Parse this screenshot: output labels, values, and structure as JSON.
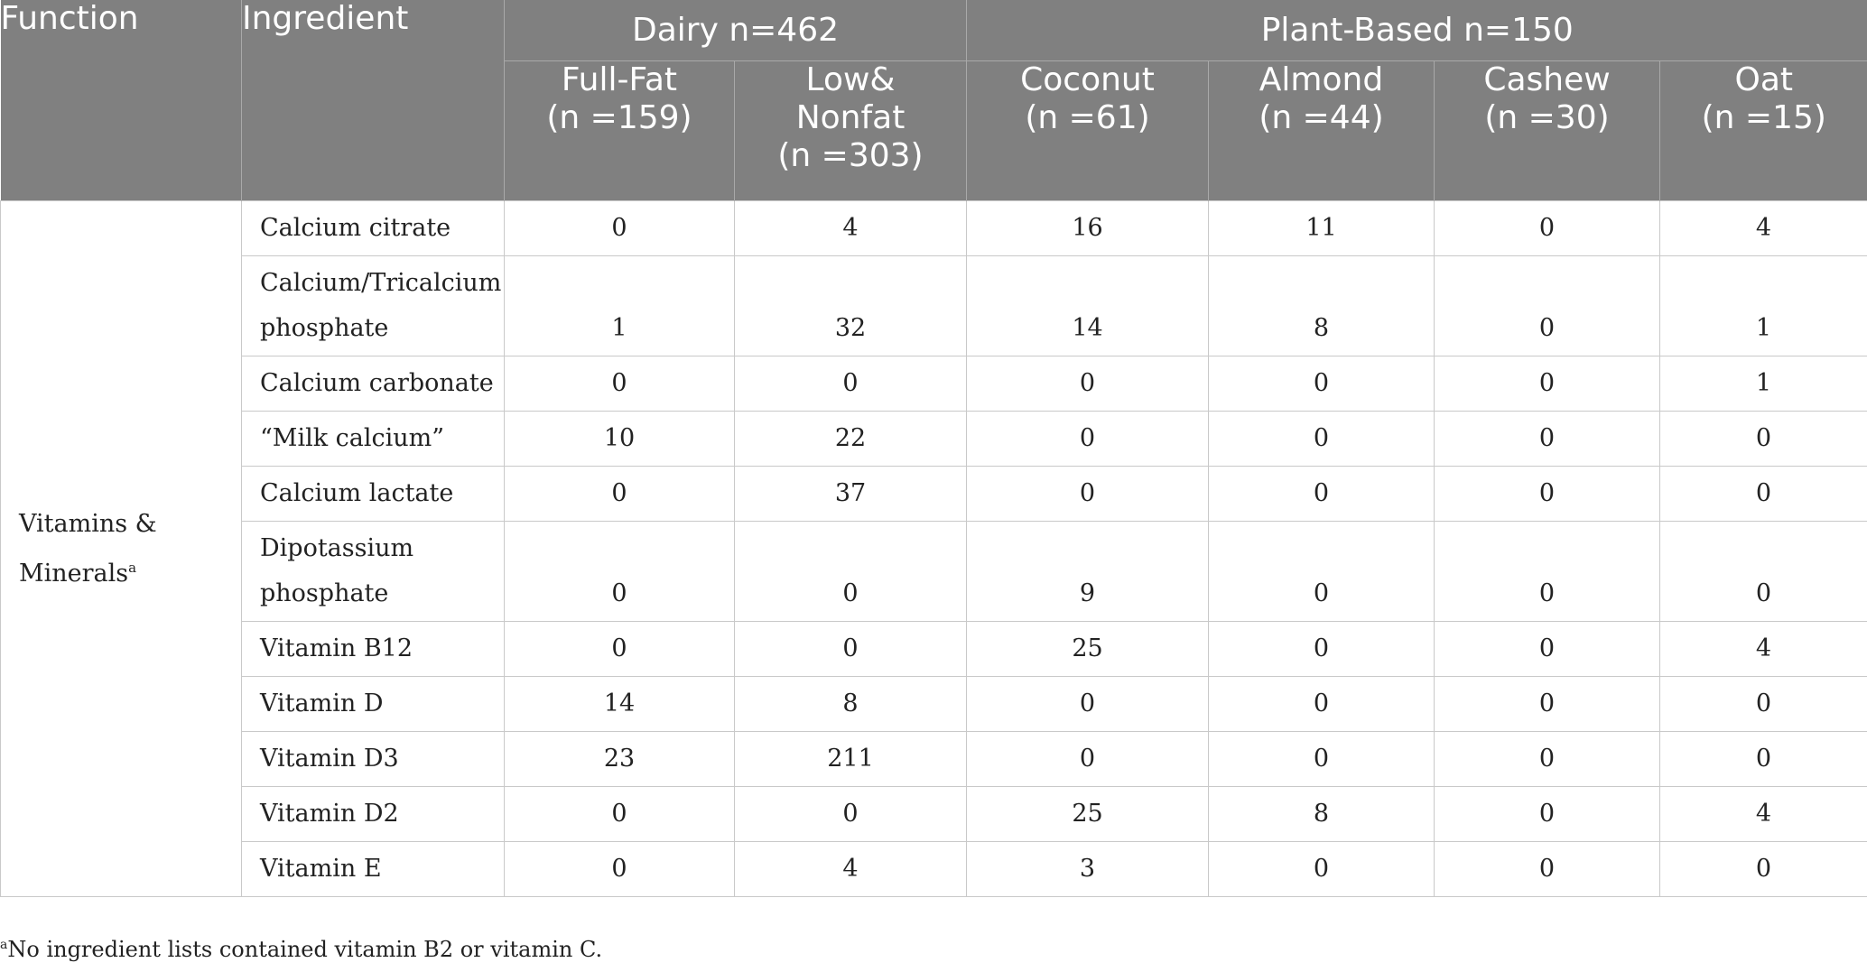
{
  "header": {
    "function": "Function",
    "ingredient": "Ingredient",
    "dairy_group": "Dairy n=462",
    "plant_group": "Plant-Based n=150",
    "columns": [
      {
        "line1": "Full-Fat",
        "line2": "(n =159)",
        "line3": ""
      },
      {
        "line1": "Low&",
        "line2": "Nonfat",
        "line3": "(n =303)"
      },
      {
        "line1": "Coconut",
        "line2": "(n =61)",
        "line3": ""
      },
      {
        "line1": "Almond",
        "line2": "(n =44)",
        "line3": ""
      },
      {
        "line1": "Cashew",
        "line2": "(n =30)",
        "line3": ""
      },
      {
        "line1": "Oat",
        "line2": "(n =15)",
        "line3": ""
      }
    ]
  },
  "function_cell": {
    "line1": "Vitamins &",
    "line2": "Minerals",
    "sup": "a"
  },
  "rows": [
    {
      "name1": "Calcium citrate",
      "name2": "",
      "values": [
        "0",
        "4",
        "16",
        "11",
        "0",
        "4"
      ]
    },
    {
      "name1": "Calcium/Tricalcium",
      "name2": "phosphate",
      "values": [
        "1",
        "32",
        "14",
        "8",
        "0",
        "1"
      ]
    },
    {
      "name1": "Calcium carbonate",
      "name2": "",
      "values": [
        "0",
        "0",
        "0",
        "0",
        "0",
        "1"
      ]
    },
    {
      "name1": "“Milk calcium”",
      "name2": "",
      "values": [
        "10",
        "22",
        "0",
        "0",
        "0",
        "0"
      ]
    },
    {
      "name1": "Calcium lactate",
      "name2": "",
      "values": [
        "0",
        "37",
        "0",
        "0",
        "0",
        "0"
      ]
    },
    {
      "name1": "Dipotassium",
      "name2": "phosphate",
      "values": [
        "0",
        "0",
        "9",
        "0",
        "0",
        "0"
      ]
    },
    {
      "name1": "Vitamin B12",
      "name2": "",
      "values": [
        "0",
        "0",
        "25",
        "0",
        "0",
        "4"
      ]
    },
    {
      "name1": "Vitamin D",
      "name2": "",
      "values": [
        "14",
        "8",
        "0",
        "0",
        "0",
        "0"
      ]
    },
    {
      "name1": "Vitamin D3",
      "name2": "",
      "values": [
        "23",
        "211",
        "0",
        "0",
        "0",
        "0"
      ]
    },
    {
      "name1": "Vitamin D2",
      "name2": "",
      "values": [
        "0",
        "0",
        "25",
        "8",
        "0",
        "4"
      ]
    },
    {
      "name1": "Vitamin E",
      "name2": "",
      "values": [
        "0",
        "4",
        "3",
        "0",
        "0",
        "0"
      ]
    }
  ],
  "footnote": {
    "sup": "a",
    "text": "No ingredient lists contained vitamin B2 or vitamin C."
  },
  "colors": {
    "header_bg": "#808080",
    "header_text": "#ffffff",
    "border": "#c9c9c9"
  }
}
